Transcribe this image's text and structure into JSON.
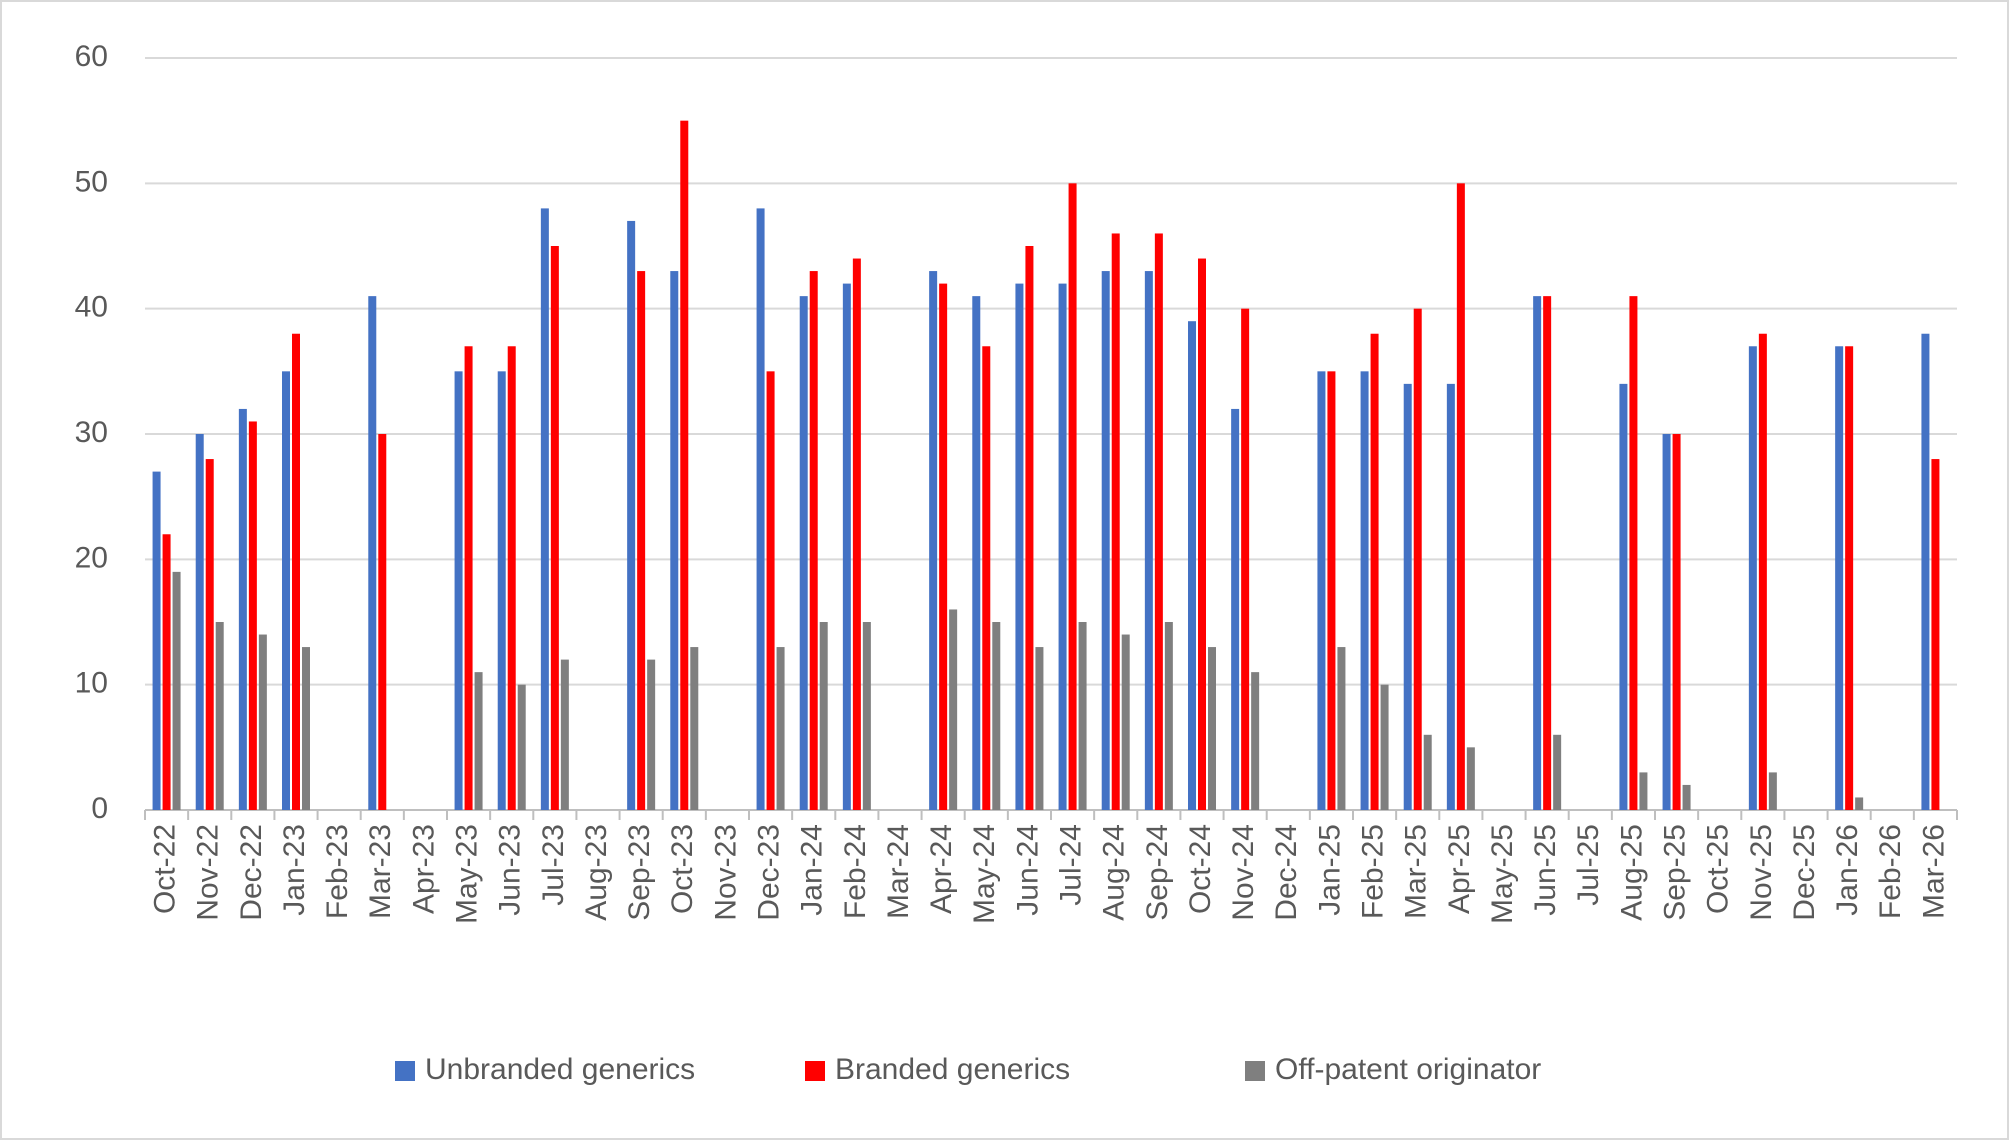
{
  "chart_data": {
    "type": "bar",
    "categories": [
      "Oct-22",
      "Nov-22",
      "Dec-22",
      "Jan-23",
      "Feb-23",
      "Mar-23",
      "Apr-23",
      "May-23",
      "Jun-23",
      "Jul-23",
      "Aug-23",
      "Sep-23",
      "Oct-23",
      "Nov-23",
      "Dec-23",
      "Jan-24",
      "Feb-24",
      "Mar-24",
      "Apr-24",
      "May-24",
      "Jun-24",
      "Jul-24",
      "Aug-24",
      "Sep-24",
      "Oct-24",
      "Nov-24",
      "Dec-24",
      "Jan-25",
      "Feb-25",
      "Mar-25",
      "Apr-25",
      "May-25",
      "Jun-25",
      "Jul-25",
      "Aug-25",
      "Sep-25",
      "Oct-25",
      "Nov-25",
      "Dec-25",
      "Jan-26",
      "Feb-26",
      "Mar-26"
    ],
    "series": [
      {
        "name": "Unbranded generics",
        "color": "#4472c4",
        "values": [
          27,
          30,
          32,
          35,
          null,
          41,
          null,
          35,
          35,
          48,
          null,
          47,
          43,
          null,
          48,
          41,
          42,
          null,
          43,
          41,
          42,
          42,
          43,
          43,
          39,
          32,
          null,
          35,
          35,
          34,
          34,
          null,
          41,
          null,
          34,
          30,
          null,
          37,
          null,
          37,
          null,
          38
        ]
      },
      {
        "name": "Branded generics",
        "color": "#ff0000",
        "values": [
          22,
          28,
          31,
          38,
          null,
          30,
          null,
          37,
          37,
          45,
          null,
          43,
          55,
          null,
          35,
          43,
          44,
          null,
          42,
          37,
          45,
          50,
          46,
          46,
          44,
          40,
          null,
          35,
          38,
          40,
          50,
          null,
          41,
          null,
          41,
          30,
          null,
          38,
          null,
          37,
          null,
          28
        ]
      },
      {
        "name": "Off-patent originator",
        "color": "#7f7f7f",
        "values": [
          19,
          15,
          14,
          13,
          null,
          null,
          null,
          11,
          10,
          12,
          null,
          12,
          13,
          null,
          13,
          15,
          15,
          null,
          16,
          15,
          13,
          15,
          14,
          15,
          13,
          11,
          null,
          13,
          10,
          6,
          5,
          null,
          6,
          null,
          3,
          2,
          null,
          3,
          null,
          1,
          null,
          null
        ]
      }
    ],
    "ylim": [
      0,
      60
    ],
    "yticks": [
      0,
      10,
      20,
      30,
      40,
      50,
      60
    ],
    "grid": true,
    "legend": "bottom"
  }
}
